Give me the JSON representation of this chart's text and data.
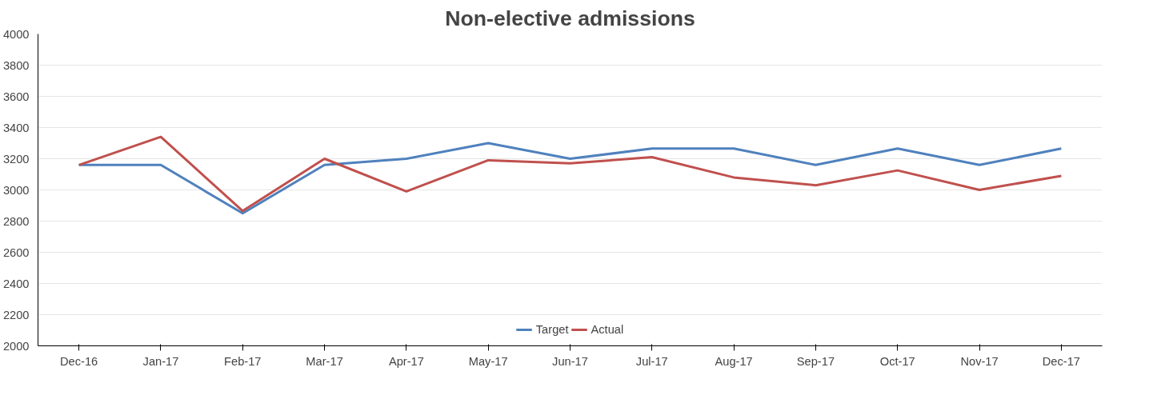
{
  "chart_data": {
    "type": "line",
    "title": "Non-elective admissions",
    "categories": [
      "Dec-16",
      "Jan-17",
      "Feb-17",
      "Mar-17",
      "Apr-17",
      "May-17",
      "Jun-17",
      "Jul-17",
      "Aug-17",
      "Sep-17",
      "Oct-17",
      "Nov-17",
      "Dec-17"
    ],
    "series": [
      {
        "name": "Target",
        "color": "#4f81bd",
        "values": [
          3160,
          3160,
          2850,
          3160,
          3200,
          3300,
          3200,
          3265,
          3265,
          3160,
          3265,
          3160,
          3265
        ]
      },
      {
        "name": "Actual",
        "color": "#c0504d",
        "values": [
          3160,
          3340,
          2865,
          3200,
          2990,
          3190,
          3170,
          3210,
          3080,
          3030,
          3125,
          3000,
          3090
        ]
      }
    ],
    "ylim": [
      2000,
      4000
    ],
    "yticks": [
      2000,
      2200,
      2400,
      2600,
      2800,
      3000,
      3200,
      3400,
      3600,
      3800,
      4000
    ],
    "grid": "y",
    "legend": "bottom",
    "marker": "none",
    "line_style": "solid"
  }
}
